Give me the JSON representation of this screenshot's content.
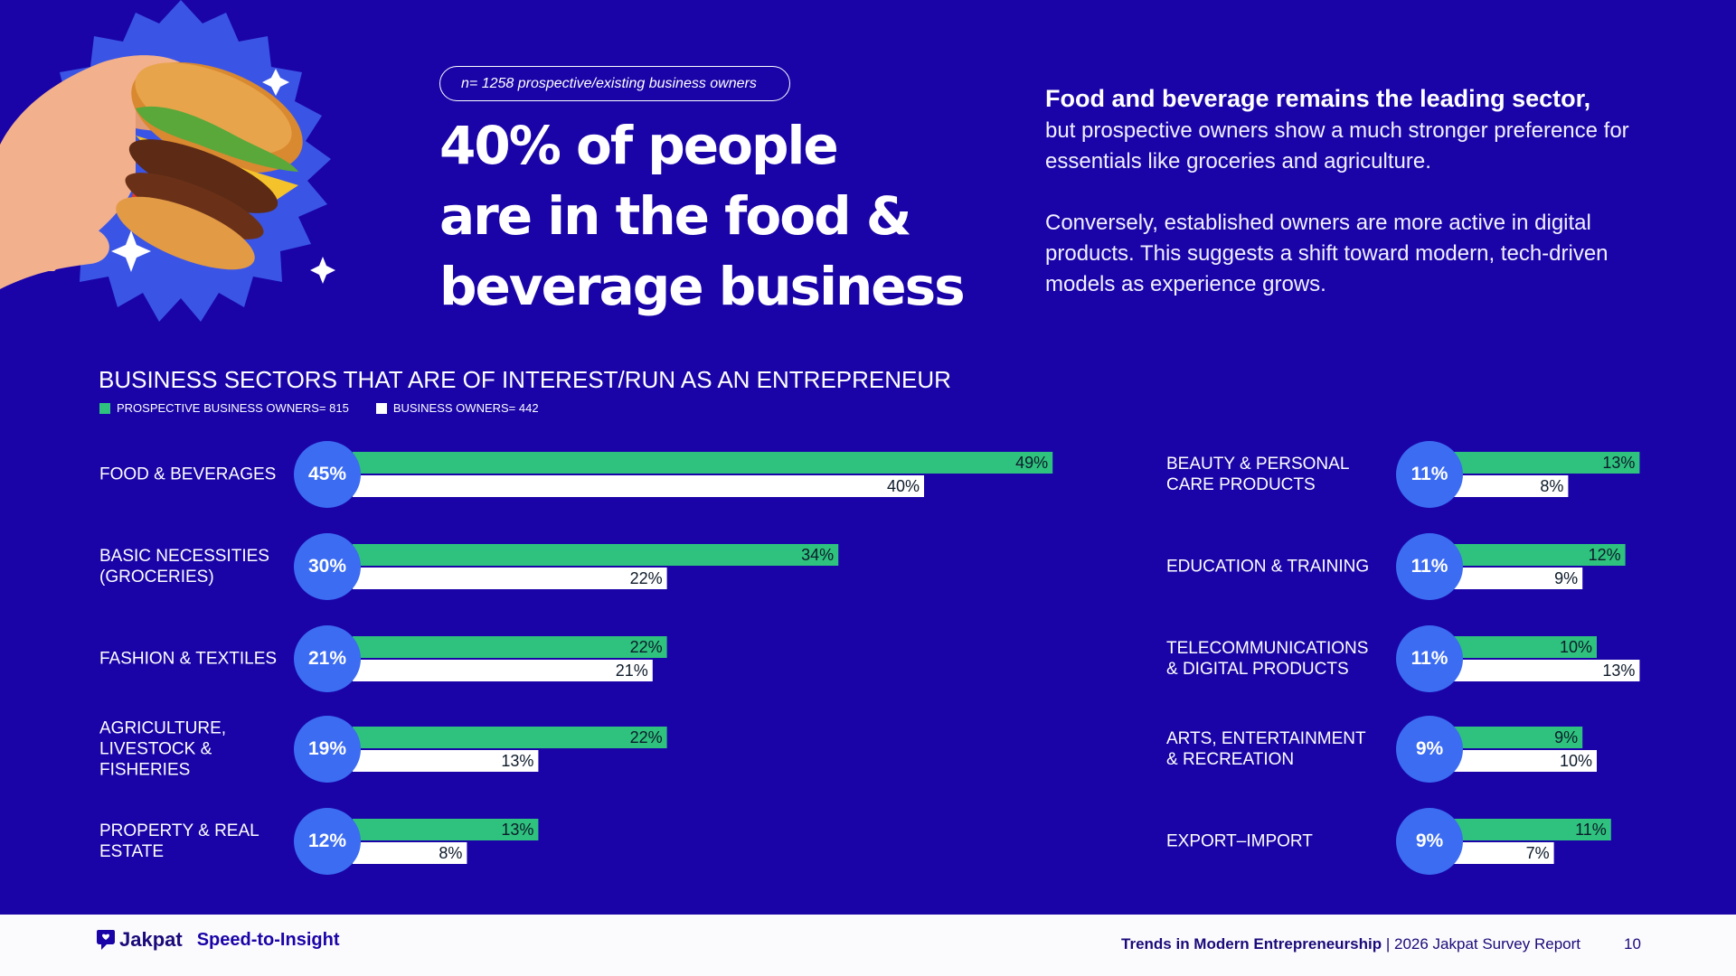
{
  "sample_note": "n= 1258 prospective/existing business owners",
  "headline": {
    "line1": "40% of people",
    "line2": "are in the food &",
    "line3": "beverage business"
  },
  "description": {
    "lead": "Food and beverage remains the leading sector,",
    "lead_rest": "but prospective owners show a much stronger preference for essentials like groceries and agriculture.",
    "second": "Conversely, established owners are more active in digital products. This suggests a shift toward modern, tech-driven models as experience grows."
  },
  "colors": {
    "background": "#1a04a8",
    "prospective": "#2ec27e",
    "owners": "#ffffff",
    "circle": "#3b6cf2"
  },
  "chart_data": {
    "type": "bar",
    "title": "BUSINESS SECTORS THAT ARE OF INTEREST/RUN AS AN ENTREPRENEUR",
    "series": [
      {
        "name": "PROSPECTIVE BUSINESS OWNERS= 815",
        "color": "#2ec27e"
      },
      {
        "name": "BUSINESS OWNERS= 442",
        "color": "#ffffff"
      }
    ],
    "unit": "%",
    "xlim": [
      0,
      50
    ],
    "grid": false,
    "categories": [
      {
        "label": "FOOD & BEVERAGES",
        "total": "45%",
        "prospective": 49,
        "owners": 40
      },
      {
        "label": "BASIC NECESSITIES\n(GROCERIES)",
        "total": "30%",
        "prospective": 34,
        "owners": 22
      },
      {
        "label": "FASHION & TEXTILES",
        "total": "21%",
        "prospective": 22,
        "owners": 21
      },
      {
        "label": "AGRICULTURE,\nLIVESTOCK &\nFISHERIES",
        "total": "19%",
        "prospective": 22,
        "owners": 13
      },
      {
        "label": "PROPERTY & REAL\nESTATE",
        "total": "12%",
        "prospective": 13,
        "owners": 8
      },
      {
        "label": "BEAUTY & PERSONAL\nCARE PRODUCTS",
        "total": "11%",
        "prospective": 13,
        "owners": 8
      },
      {
        "label": "EDUCATION & TRAINING",
        "total": "11%",
        "prospective": 12,
        "owners": 9
      },
      {
        "label": "TELECOMMUNICATIONS\n& DIGITAL PRODUCTS",
        "total": "11%",
        "prospective": 10,
        "owners": 13
      },
      {
        "label": "ARTS, ENTERTAINMENT\n& RECREATION",
        "total": "9%",
        "prospective": 9,
        "owners": 10
      },
      {
        "label": "EXPORT–IMPORT",
        "total": "9%",
        "prospective": 11,
        "owners": 7
      }
    ]
  },
  "footer": {
    "brand": "Jakpat",
    "tagline": "Speed-to-Insight",
    "report_bold": "Trends in Modern Entrepreneurship",
    "report_rest": " | 2026 Jakpat Survey Report",
    "page_number": "10"
  }
}
